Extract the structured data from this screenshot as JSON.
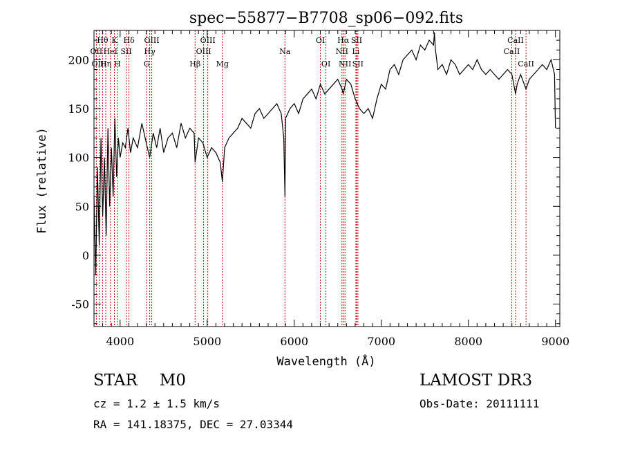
{
  "colors": {
    "ink": "#000000",
    "line": "#cc0000",
    "background": "#ffffff"
  },
  "chart_data": {
    "type": "line",
    "title": "spec−55877−B7708_sp06−092.fits",
    "xlabel": "Wavelength (Å)",
    "ylabel": "Flux (relative)",
    "xlim": [
      3700,
      9050
    ],
    "ylim": [
      -73,
      230
    ],
    "xticks": [
      4000,
      5000,
      6000,
      7000,
      8000,
      9000
    ],
    "yticks": [
      -50,
      0,
      50,
      100,
      150,
      200
    ],
    "grid": false,
    "series": [
      {
        "name": "flux",
        "x": [
          3700,
          3720,
          3740,
          3760,
          3780,
          3800,
          3820,
          3840,
          3860,
          3880,
          3900,
          3920,
          3940,
          3960,
          3980,
          4000,
          4030,
          4060,
          4090,
          4120,
          4150,
          4200,
          4250,
          4300,
          4340,
          4380,
          4420,
          4460,
          4500,
          4550,
          4600,
          4650,
          4700,
          4750,
          4800,
          4850,
          4861,
          4900,
          4950,
          5000,
          5050,
          5100,
          5150,
          5175,
          5200,
          5250,
          5300,
          5350,
          5400,
          5450,
          5500,
          5550,
          5600,
          5650,
          5700,
          5750,
          5800,
          5850,
          5880,
          5893,
          5900,
          5950,
          6000,
          6050,
          6100,
          6150,
          6200,
          6250,
          6300,
          6350,
          6400,
          6450,
          6500,
          6550,
          6563,
          6600,
          6650,
          6700,
          6750,
          6800,
          6850,
          6900,
          6950,
          7000,
          7050,
          7100,
          7150,
          7200,
          7250,
          7300,
          7350,
          7400,
          7450,
          7500,
          7550,
          7600,
          7610,
          7620,
          7650,
          7700,
          7750,
          7800,
          7850,
          7900,
          7950,
          8000,
          8050,
          8100,
          8150,
          8200,
          8250,
          8300,
          8350,
          8400,
          8450,
          8500,
          8542,
          8560,
          8600,
          8662,
          8700,
          8750,
          8800,
          8850,
          8900,
          8950,
          8990,
          9000
        ],
        "values": [
          60,
          -20,
          90,
          10,
          120,
          40,
          100,
          20,
          130,
          50,
          110,
          60,
          140,
          80,
          120,
          100,
          115,
          110,
          130,
          105,
          120,
          110,
          135,
          115,
          100,
          125,
          110,
          130,
          105,
          120,
          125,
          110,
          135,
          120,
          130,
          125,
          95,
          120,
          115,
          100,
          110,
          105,
          95,
          75,
          110,
          120,
          125,
          130,
          140,
          135,
          130,
          145,
          150,
          140,
          145,
          150,
          155,
          145,
          120,
          60,
          140,
          150,
          155,
          145,
          160,
          165,
          170,
          160,
          175,
          165,
          170,
          175,
          180,
          170,
          165,
          180,
          175,
          160,
          150,
          145,
          150,
          140,
          160,
          175,
          170,
          190,
          195,
          185,
          200,
          205,
          210,
          200,
          215,
          210,
          220,
          215,
          228,
          212,
          190,
          195,
          185,
          200,
          195,
          185,
          190,
          195,
          190,
          200,
          190,
          185,
          190,
          185,
          180,
          185,
          190,
          185,
          165,
          175,
          185,
          170,
          180,
          185,
          190,
          195,
          190,
          200,
          185,
          130
        ]
      }
    ],
    "line_markers": [
      {
        "label": "Hθ",
        "wavelength": 3798,
        "row": 1
      },
      {
        "label": "OII",
        "wavelength": 3727,
        "row": 2
      },
      {
        "label": "OIII",
        "wavelength": 3760,
        "row": 3
      },
      {
        "label": "K",
        "wavelength": 3934,
        "row": 1
      },
      {
        "label": "HeI",
        "wavelength": 3889,
        "row": 2
      },
      {
        "label": "Hη",
        "wavelength": 3835,
        "row": 3
      },
      {
        "label": "SII",
        "wavelength": 4070,
        "row": 2
      },
      {
        "label": "H",
        "wavelength": 3969,
        "row": 3
      },
      {
        "label": "Hδ",
        "wavelength": 4102,
        "row": 1
      },
      {
        "label": "OIII",
        "wavelength": 4363,
        "row": 1
      },
      {
        "label": "Hγ",
        "wavelength": 4340,
        "row": 2
      },
      {
        "label": "G",
        "wavelength": 4305,
        "row": 3
      },
      {
        "label": "Hβ",
        "wavelength": 4861,
        "row": 3
      },
      {
        "label": "OIII",
        "wavelength": 5007,
        "row": 1
      },
      {
        "label": "OIII",
        "wavelength": 4959,
        "row": 2
      },
      {
        "label": "Mg",
        "wavelength": 5175,
        "row": 3
      },
      {
        "label": "Na",
        "wavelength": 5893,
        "row": 2
      },
      {
        "label": "OI",
        "wavelength": 6300,
        "row": 1
      },
      {
        "label": "OI",
        "wavelength": 6364,
        "row": 3
      },
      {
        "label": "Hα",
        "wavelength": 6563,
        "row": 1
      },
      {
        "label": "NII",
        "wavelength": 6548,
        "row": 2
      },
      {
        "label": "NII",
        "wavelength": 6583,
        "row": 3
      },
      {
        "label": "SII",
        "wavelength": 6716,
        "row": 1
      },
      {
        "label": "Li",
        "wavelength": 6708,
        "row": 2
      },
      {
        "label": "SII",
        "wavelength": 6731,
        "row": 3
      },
      {
        "label": "CaII",
        "wavelength": 8542,
        "row": 1
      },
      {
        "label": "CaII",
        "wavelength": 8498,
        "row": 2
      },
      {
        "label": "CaII",
        "wavelength": 8662,
        "row": 3
      }
    ]
  },
  "info": {
    "class_label": "STAR",
    "subclass_label": "M0",
    "survey": "LAMOST DR3",
    "redshift": "cz = 1.2 ± 1.5 km/s",
    "obs_date": "Obs-Date: 20111111",
    "coords": "RA = 141.18375, DEC =  27.03344"
  }
}
